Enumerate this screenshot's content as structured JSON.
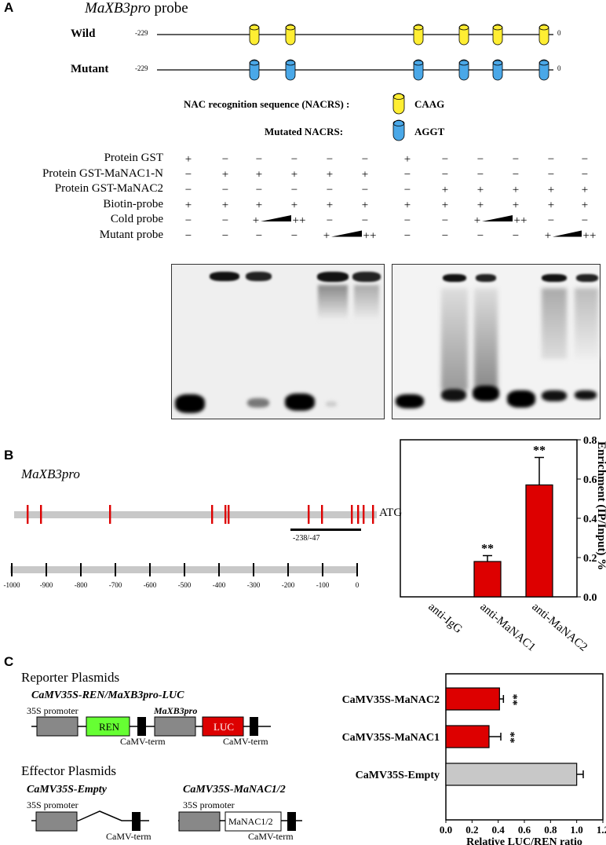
{
  "panelA": {
    "letter": "A",
    "title": "MaXB3pro",
    "title_suffix": " probe",
    "wild_label": "Wild",
    "mutant_label": "Mutant",
    "start": "-229",
    "end": "0",
    "legend_nacrs": "NAC recognition sequence (NACRS) :",
    "legend_nacrs_seq": "CAAG",
    "legend_mut": "Mutated NACRS:",
    "legend_mut_seq": "AGGT",
    "colors": {
      "wild": "#ffee33",
      "mutant": "#4aa8e8",
      "bar": "#dd0000"
    },
    "rows": [
      {
        "label": "Protein GST",
        "marks": [
          "+",
          "−",
          "−",
          "−",
          "−",
          "−",
          "+",
          "−",
          "−",
          "−",
          "−",
          "−"
        ]
      },
      {
        "label": "Protein GST-MaNAC1-N",
        "marks": [
          "−",
          "+",
          "+",
          "+",
          "+",
          "+",
          "−",
          "−",
          "−",
          "−",
          "−",
          "−"
        ]
      },
      {
        "label": "Protein GST-MaNAC2",
        "marks": [
          "−",
          "−",
          "−",
          "−",
          "−",
          "−",
          "−",
          "+",
          "+",
          "+",
          "+",
          "+"
        ]
      },
      {
        "label": "Biotin-probe",
        "marks": [
          "+",
          "+",
          "+",
          "+",
          "+",
          "+",
          "+",
          "+",
          "+",
          "+",
          "+",
          "+"
        ]
      },
      {
        "label": "Cold probe",
        "marks": [
          "−",
          "−",
          "+",
          "++",
          "−",
          "−",
          "−",
          "−",
          "+",
          "++",
          "−",
          "−"
        ]
      },
      {
        "label": "Mutant probe",
        "marks": [
          "−",
          "−",
          "−",
          "−",
          "+",
          "++",
          "−",
          "−",
          "−",
          "−",
          "+",
          "++"
        ]
      }
    ]
  },
  "panelB": {
    "letter": "B",
    "title": "MaXB3pro",
    "atg": "ATG",
    "region": "-238/-47",
    "scale_ticks": [
      "-1000",
      "-900",
      "-800",
      "-700",
      "-600",
      "-500",
      "-400",
      "-300",
      "-200",
      "-100",
      "0"
    ],
    "chart_data": {
      "type": "bar",
      "categories": [
        "anti-IgG",
        "anti-MaNAC1",
        "anti-MaNAC2"
      ],
      "values": [
        0,
        0.18,
        0.57
      ],
      "errors": [
        0,
        0.03,
        0.14
      ],
      "significance": [
        "",
        "**",
        "**"
      ],
      "ylabel": "Enrichment (IP/Input) %",
      "ylim": [
        0,
        0.8
      ],
      "yticks": [
        "0.0",
        "0.2",
        "0.4",
        "0.6",
        "0.8"
      ],
      "color": "#dd0000"
    }
  },
  "panelC": {
    "letter": "C",
    "reporter_title": "Reporter Plasmids",
    "reporter_name": "CaMV35S-REN/MaXB3pro-LUC",
    "promoter_35s": "35S promoter",
    "ren": "REN",
    "maxb3pro": "MaXB3pro",
    "luc": "LUC",
    "camv_term": "CaMV-term",
    "effector_title": "Effector Plasmids",
    "effector_empty": "CaMV35S-Empty",
    "effector_nac": "CaMV35S-MaNAC1/2",
    "manac": "MaNAC1/2",
    "chart_data": {
      "type": "bar",
      "orientation": "horizontal",
      "categories": [
        "CaMV35S-MaNAC2",
        "CaMV35S-MaNAC1",
        "CaMV35S-Empty"
      ],
      "values": [
        0.41,
        0.33,
        1.0
      ],
      "errors": [
        0.03,
        0.09,
        0.05
      ],
      "significance": [
        "**",
        "**",
        ""
      ],
      "colors": [
        "#dd0000",
        "#dd0000",
        "#c8c8c8"
      ],
      "xlabel": "Relative LUC/REN ratio",
      "xlim": [
        0,
        1.2
      ],
      "xticks": [
        "0.0",
        "0.2",
        "0.4",
        "0.6",
        "0.8",
        "1.0",
        "1.2"
      ]
    }
  }
}
